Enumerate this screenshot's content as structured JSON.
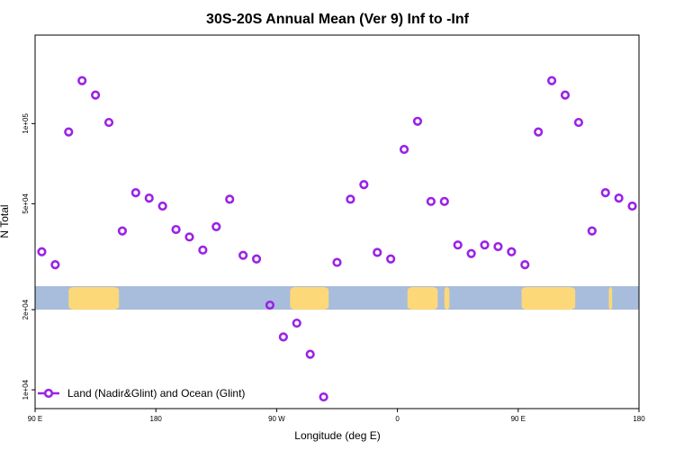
{
  "chart_data": {
    "type": "scatter",
    "title": "30S-20S Annual Mean (Ver 9)   Inf to -Inf",
    "xlabel": "Longitude (deg E)",
    "ylabel": "N Total",
    "y_scale": "log",
    "xlim": [
      90,
      450
    ],
    "ylim": [
      8500,
      215000
    ],
    "x_ticks": [
      {
        "value": 90,
        "label": "90 E"
      },
      {
        "value": 162,
        "label": "180"
      },
      {
        "value": 234,
        "label": "90 W"
      },
      {
        "value": 306,
        "label": "0"
      },
      {
        "value": 378,
        "label": "90 E"
      },
      {
        "value": 450,
        "label": "180"
      }
    ],
    "y_ticks": [
      {
        "value": 10000,
        "label": "1e+04"
      },
      {
        "value": 20000,
        "label": "2e+04"
      },
      {
        "value": 50000,
        "label": "5e+04"
      },
      {
        "value": 100000,
        "label": "1e+05"
      }
    ],
    "map_strip": {
      "y_range": [
        20000,
        24500
      ],
      "ocean_color": "#a8bcdc",
      "land_color": "#fcd879",
      "land_ranges": [
        [
          110,
          140
        ],
        [
          242,
          265
        ],
        [
          312,
          330
        ],
        [
          334,
          337
        ],
        [
          380,
          412
        ],
        [
          432,
          434
        ]
      ]
    },
    "series": [
      {
        "name": "Land (Nadir&Glint) and Ocean (Glint)",
        "color": "#9b22e6",
        "x": [
          94,
          102,
          110,
          118,
          126,
          134,
          142,
          150,
          158,
          166,
          174,
          182,
          190,
          198,
          206,
          214,
          222,
          230,
          238,
          246,
          254,
          262,
          270,
          278,
          286,
          294,
          302,
          310,
          318,
          326,
          334,
          342,
          350,
          358,
          366,
          374,
          382,
          390,
          398,
          406,
          414,
          422,
          430,
          438,
          446
        ],
        "y": [
          33000,
          29500,
          93000,
          145000,
          128000,
          101000,
          39500,
          55000,
          52500,
          49000,
          40000,
          37500,
          33500,
          41000,
          52000,
          32000,
          31000,
          20800,
          15800,
          17800,
          13600,
          9400,
          30100,
          52000,
          59000,
          32800,
          31000,
          80000,
          102000,
          51000,
          51000,
          35000,
          32500,
          35000,
          34500,
          33000,
          29500,
          93000,
          145000,
          128000,
          101000,
          39500,
          55000,
          52500,
          49000
        ]
      }
    ],
    "legend": {
      "location": "bottom-left",
      "entries": [
        "Land (Nadir&Glint) and Ocean (Glint)"
      ]
    }
  }
}
